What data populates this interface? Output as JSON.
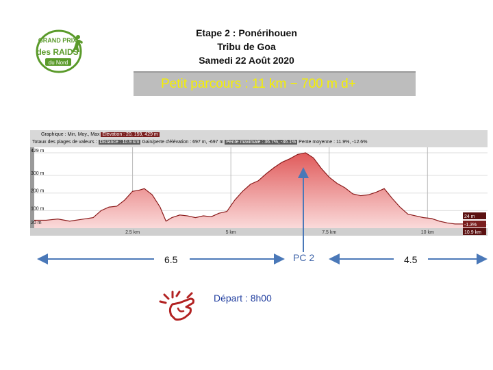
{
  "header": {
    "line1": "Etape 2 : Ponérihouen",
    "line2": "Tribu de Goa",
    "line3": "Samedi 22 Août 2020"
  },
  "logo": {
    "icon": "grand-prix-des-raids-logo",
    "top": "GRAND PRIX",
    "middle": "des RAIDS",
    "bottom": "du Nord"
  },
  "banner": {
    "text": "Petit parcours : 11 km − 700 m d+"
  },
  "chart_info": {
    "graphique_label": "Graphique : Min, Moy., Max",
    "elevation_value": "Élévation : 20, 159, 429 m",
    "totaux_label": "Totaux des plages de valeurs :",
    "distance_value": "Distance : 10.9 km",
    "gain_value": "Gain/perte d'élévation : 697 m, -697 m",
    "pente_max_value": "Pente maximale : 36.7%, -36.1%",
    "pente_moy_value": "Pente moyenne : 11.9%, -12.6%"
  },
  "chart_data": {
    "type": "area",
    "x": [
      0,
      0.3,
      0.6,
      0.9,
      1.2,
      1.5,
      1.7,
      1.9,
      2.1,
      2.3,
      2.5,
      2.65,
      2.8,
      3.0,
      3.2,
      3.35,
      3.5,
      3.7,
      3.9,
      4.1,
      4.3,
      4.5,
      4.7,
      4.9,
      5.1,
      5.3,
      5.5,
      5.7,
      5.9,
      6.1,
      6.3,
      6.5,
      6.7,
      6.9,
      7.1,
      7.3,
      7.5,
      7.7,
      7.9,
      8.1,
      8.3,
      8.5,
      8.7,
      8.9,
      9.1,
      9.3,
      9.5,
      9.7,
      9.9,
      10.1,
      10.3,
      10.5,
      10.7,
      10.9
    ],
    "y": [
      45,
      45,
      52,
      40,
      50,
      60,
      100,
      120,
      125,
      160,
      210,
      215,
      225,
      190,
      120,
      40,
      60,
      75,
      70,
      60,
      70,
      65,
      85,
      95,
      160,
      210,
      250,
      270,
      310,
      345,
      375,
      395,
      420,
      429,
      400,
      340,
      290,
      255,
      230,
      195,
      185,
      190,
      205,
      225,
      170,
      120,
      80,
      70,
      60,
      55,
      40,
      30,
      24,
      24
    ],
    "xlabel": "",
    "ylabel": "",
    "x_ticks": [
      "2.5 km",
      "5 km",
      "7.5 km",
      "10 km"
    ],
    "x_tick_values": [
      2.5,
      5,
      7.5,
      10
    ],
    "y_ticks": [
      "20 m",
      "100 m",
      "200 m",
      "300 m",
      "429 m"
    ],
    "y_tick_values": [
      20,
      100,
      200,
      300,
      429
    ],
    "xlim": [
      0,
      10.9
    ],
    "ylim": [
      0,
      460
    ],
    "end_labels": [
      "24 m",
      "-1.3%",
      "10.9 km"
    ],
    "grid": true,
    "fill_color": "#e57a7a",
    "line_color": "#8a1a1a"
  },
  "annotations": {
    "seg1": "6.5",
    "seg2": "4.5",
    "pc2": "PC 2",
    "depart": "Départ : 8h00",
    "depart_icon": "hand-wave-icon",
    "arrow_color": "#4a78b8"
  }
}
